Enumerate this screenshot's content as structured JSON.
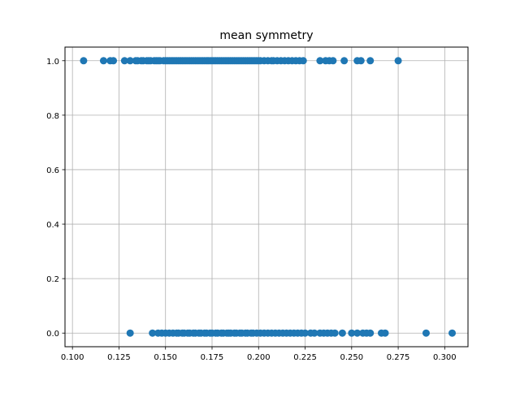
{
  "chart_data": {
    "type": "scatter",
    "title": "mean symmetry",
    "xlabel": "",
    "ylabel": "",
    "xlim": [
      0.096,
      0.3125
    ],
    "ylim": [
      -0.05,
      1.05
    ],
    "xticks": [
      "0.100",
      "0.125",
      "0.150",
      "0.175",
      "0.200",
      "0.225",
      "0.250",
      "0.275",
      "0.300"
    ],
    "yticks": [
      "0.0",
      "0.2",
      "0.4",
      "0.6",
      "0.8",
      "1.0"
    ],
    "grid": true,
    "legend": "none",
    "marker_color": "#1f77b4",
    "series": [
      {
        "y": 1.0,
        "x": [
          0.106,
          0.1167,
          0.1203,
          0.122,
          0.128,
          0.131,
          0.134,
          0.135,
          0.137,
          0.138,
          0.14,
          0.141,
          0.142,
          0.144,
          0.145,
          0.146,
          0.147,
          0.149,
          0.15,
          0.151,
          0.152,
          0.153,
          0.154,
          0.155,
          0.156,
          0.157,
          0.158,
          0.159,
          0.16,
          0.161,
          0.162,
          0.163,
          0.164,
          0.165,
          0.166,
          0.167,
          0.168,
          0.169,
          0.17,
          0.171,
          0.172,
          0.173,
          0.174,
          0.175,
          0.176,
          0.177,
          0.178,
          0.179,
          0.18,
          0.181,
          0.182,
          0.183,
          0.184,
          0.185,
          0.186,
          0.187,
          0.188,
          0.189,
          0.19,
          0.191,
          0.192,
          0.193,
          0.194,
          0.195,
          0.196,
          0.197,
          0.198,
          0.199,
          0.2,
          0.201,
          0.203,
          0.205,
          0.207,
          0.208,
          0.21,
          0.212,
          0.214,
          0.216,
          0.218,
          0.22,
          0.222,
          0.224,
          0.233,
          0.236,
          0.238,
          0.24,
          0.246,
          0.253,
          0.255,
          0.26,
          0.275
        ]
      },
      {
        "y": 0.0,
        "x": [
          0.131,
          0.143,
          0.146,
          0.148,
          0.15,
          0.152,
          0.154,
          0.156,
          0.157,
          0.159,
          0.16,
          0.162,
          0.163,
          0.165,
          0.166,
          0.168,
          0.169,
          0.171,
          0.172,
          0.174,
          0.175,
          0.177,
          0.178,
          0.18,
          0.181,
          0.183,
          0.184,
          0.185,
          0.187,
          0.188,
          0.19,
          0.191,
          0.193,
          0.194,
          0.196,
          0.197,
          0.199,
          0.201,
          0.203,
          0.205,
          0.207,
          0.209,
          0.211,
          0.213,
          0.215,
          0.217,
          0.219,
          0.221,
          0.223,
          0.225,
          0.228,
          0.23,
          0.233,
          0.235,
          0.237,
          0.239,
          0.241,
          0.245,
          0.25,
          0.253,
          0.256,
          0.258,
          0.26,
          0.266,
          0.268,
          0.29,
          0.304
        ]
      }
    ]
  }
}
